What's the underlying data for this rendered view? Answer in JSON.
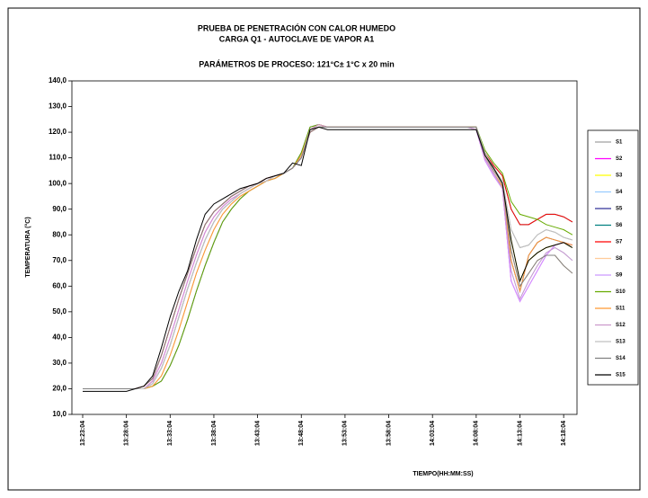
{
  "chart_data": {
    "type": "line",
    "title": "PRUEBA DE  PENETRACIÓN CON  CALOR HUMEDO",
    "subtitle": "CARGA Q1 - AUTOCLAVE DE VAPOR A1",
    "annotation": "PARÁMETROS DE PROCESO: 121°C± 1°C x 20 min",
    "ylabel": "TEMPERATURA (°C)",
    "xlabel": "TIEMPO(HH:MM:SS)",
    "ylim": [
      10,
      140
    ],
    "yticks": [
      {
        "value": 10,
        "label": "10,0"
      },
      {
        "value": 20,
        "label": "20,0"
      },
      {
        "value": 30,
        "label": "30,0"
      },
      {
        "value": 40,
        "label": "40,0"
      },
      {
        "value": 50,
        "label": "50,0"
      },
      {
        "value": 60,
        "label": "60,0"
      },
      {
        "value": 70,
        "label": "70,0"
      },
      {
        "value": 80,
        "label": "80,0"
      },
      {
        "value": 90,
        "label": "90,0"
      },
      {
        "value": 100,
        "label": "100,0"
      },
      {
        "value": 110,
        "label": "110,0"
      },
      {
        "value": 120,
        "label": "120,0"
      },
      {
        "value": 130,
        "label": "130,0"
      },
      {
        "value": 140,
        "label": "140,0"
      }
    ],
    "grid": false,
    "legend": "right",
    "categories": [
      "13:23:04",
      null,
      null,
      null,
      null,
      "13:28:04",
      null,
      null,
      null,
      null,
      "13:33:04",
      null,
      null,
      null,
      null,
      "13:38:04",
      null,
      null,
      null,
      null,
      "13:43:04",
      null,
      null,
      null,
      null,
      "13:48:04",
      null,
      null,
      null,
      null,
      "13:53:04",
      null,
      null,
      null,
      null,
      "13:58:04",
      null,
      null,
      null,
      null,
      "14:03:04",
      null,
      null,
      null,
      null,
      "14:08:04",
      null,
      null,
      null,
      null,
      "14:13:04",
      null,
      null,
      null,
      null,
      "14:18:04",
      null
    ],
    "series": [
      {
        "name": "S1",
        "color": "#a0a0a0",
        "values": [
          20,
          20,
          20,
          20,
          20,
          20,
          20,
          21,
          24,
          33,
          44,
          55,
          65,
          75,
          84,
          89,
          92,
          95,
          97,
          99,
          100,
          102,
          103,
          104,
          106,
          110,
          120,
          122,
          122,
          122,
          122,
          122,
          122,
          122,
          122,
          122,
          122,
          122,
          122,
          122,
          122,
          122,
          122,
          122,
          122,
          122,
          112,
          106,
          101,
          82,
          75,
          76,
          80,
          82,
          81,
          79,
          78
        ]
      },
      {
        "name": "S2",
        "color": "#ff00ff",
        "values": [
          20,
          20,
          20,
          20,
          20,
          20,
          20,
          20,
          23,
          30,
          40,
          51,
          62,
          72,
          81,
          87,
          91,
          94,
          96,
          98,
          100,
          101,
          103,
          104,
          106,
          110,
          121,
          123,
          122,
          122,
          122,
          122,
          122,
          122,
          122,
          122,
          122,
          122,
          122,
          122,
          122,
          122,
          122,
          122,
          122,
          121,
          109,
          103,
          98,
          62,
          54,
          60,
          66,
          72,
          76,
          77,
          76
        ]
      },
      {
        "name": "S3",
        "color": "#ffff00",
        "values": [
          20,
          20,
          20,
          20,
          20,
          20,
          20,
          20,
          22,
          28,
          37,
          48,
          59,
          69,
          78,
          85,
          90,
          93,
          96,
          98,
          100,
          101,
          103,
          104,
          106,
          110,
          121,
          122,
          122,
          122,
          122,
          122,
          122,
          122,
          122,
          122,
          122,
          122,
          122,
          122,
          122,
          122,
          122,
          122,
          122,
          121,
          111,
          106,
          100,
          78,
          62,
          70,
          73,
          75,
          76,
          77,
          75
        ]
      },
      {
        "name": "S4",
        "color": "#99ccff",
        "values": [
          20,
          20,
          20,
          20,
          20,
          20,
          20,
          20,
          21,
          25,
          33,
          43,
          54,
          65,
          74,
          82,
          88,
          92,
          95,
          97,
          99,
          101,
          102,
          104,
          106,
          111,
          121,
          123,
          122,
          122,
          122,
          122,
          122,
          122,
          122,
          122,
          122,
          122,
          122,
          122,
          122,
          122,
          122,
          122,
          122,
          121,
          110,
          104,
          98,
          66,
          55,
          62,
          68,
          73,
          75,
          73,
          70
        ]
      },
      {
        "name": "S5",
        "color": "#333399",
        "values": [
          20,
          20,
          20,
          20,
          20,
          20,
          20,
          20,
          21,
          23,
          29,
          37,
          47,
          58,
          68,
          77,
          85,
          90,
          94,
          97,
          99,
          101,
          102,
          104,
          106,
          112,
          122,
          123,
          122,
          122,
          122,
          122,
          122,
          122,
          122,
          122,
          122,
          122,
          122,
          122,
          122,
          122,
          122,
          122,
          122,
          122,
          110,
          104,
          99,
          70,
          58,
          72,
          77,
          79,
          78,
          77,
          76
        ]
      },
      {
        "name": "S6",
        "color": "#008080",
        "values": [
          20,
          20,
          20,
          20,
          20,
          20,
          20,
          20,
          22,
          28,
          37,
          48,
          59,
          69,
          78,
          85,
          90,
          93,
          96,
          98,
          100,
          101,
          103,
          104,
          106,
          110,
          121,
          122,
          122,
          122,
          122,
          122,
          122,
          122,
          122,
          122,
          122,
          122,
          122,
          122,
          122,
          122,
          122,
          122,
          122,
          122,
          112,
          107,
          103,
          90,
          84,
          84,
          86,
          88,
          88,
          87,
          85
        ]
      },
      {
        "name": "S7",
        "color": "#ff0000",
        "values": [
          20,
          20,
          20,
          20,
          20,
          20,
          20,
          21,
          24,
          33,
          44,
          55,
          65,
          75,
          84,
          89,
          92,
          95,
          97,
          99,
          100,
          102,
          103,
          104,
          106,
          110,
          120,
          122,
          122,
          122,
          122,
          122,
          122,
          122,
          122,
          122,
          122,
          122,
          122,
          122,
          122,
          122,
          122,
          122,
          122,
          122,
          112,
          107,
          103,
          90,
          84,
          84,
          86,
          88,
          88,
          87,
          85
        ]
      },
      {
        "name": "S8",
        "color": "#ffcc99",
        "values": [
          20,
          20,
          20,
          20,
          20,
          20,
          20,
          20,
          21,
          25,
          33,
          43,
          54,
          65,
          74,
          82,
          88,
          92,
          95,
          97,
          99,
          101,
          102,
          104,
          106,
          111,
          121,
          123,
          122,
          122,
          122,
          122,
          122,
          122,
          122,
          122,
          122,
          122,
          122,
          122,
          122,
          122,
          122,
          122,
          122,
          122,
          111,
          105,
          100,
          74,
          60,
          65,
          70,
          72,
          72,
          68,
          65
        ]
      },
      {
        "name": "S9",
        "color": "#cc99ff",
        "values": [
          20,
          20,
          20,
          20,
          20,
          20,
          20,
          20,
          22,
          28,
          37,
          48,
          59,
          69,
          78,
          85,
          90,
          93,
          96,
          98,
          100,
          101,
          103,
          104,
          106,
          110,
          121,
          122,
          122,
          122,
          122,
          122,
          122,
          122,
          122,
          122,
          122,
          122,
          122,
          122,
          122,
          122,
          122,
          122,
          122,
          121,
          109,
          103,
          98,
          62,
          54,
          60,
          66,
          72,
          76,
          77,
          76
        ]
      },
      {
        "name": "S10",
        "color": "#66aa00",
        "values": [
          20,
          20,
          20,
          20,
          20,
          20,
          20,
          20,
          21,
          23,
          29,
          37,
          47,
          58,
          68,
          77,
          85,
          90,
          94,
          97,
          99,
          101,
          102,
          104,
          106,
          112,
          122,
          123,
          122,
          122,
          122,
          122,
          122,
          122,
          122,
          122,
          122,
          122,
          122,
          122,
          122,
          122,
          122,
          122,
          122,
          122,
          113,
          108,
          104,
          93,
          88,
          87,
          86,
          84,
          83,
          82,
          80
        ]
      },
      {
        "name": "S11",
        "color": "#ff9933",
        "values": [
          20,
          20,
          20,
          20,
          20,
          20,
          20,
          20,
          21,
          25,
          33,
          43,
          54,
          65,
          74,
          82,
          88,
          92,
          95,
          97,
          99,
          101,
          102,
          104,
          106,
          111,
          121,
          123,
          122,
          122,
          122,
          122,
          122,
          122,
          122,
          122,
          122,
          122,
          122,
          122,
          122,
          122,
          122,
          122,
          122,
          122,
          110,
          104,
          99,
          70,
          58,
          72,
          77,
          79,
          78,
          77,
          76
        ]
      },
      {
        "name": "S12",
        "color": "#cc99cc",
        "values": [
          20,
          20,
          20,
          20,
          20,
          20,
          20,
          20,
          23,
          30,
          40,
          51,
          62,
          72,
          81,
          87,
          91,
          94,
          96,
          98,
          100,
          101,
          103,
          104,
          106,
          110,
          121,
          123,
          122,
          122,
          122,
          122,
          122,
          122,
          122,
          122,
          122,
          122,
          122,
          122,
          122,
          122,
          122,
          122,
          122,
          121,
          110,
          104,
          98,
          66,
          55,
          62,
          68,
          73,
          75,
          73,
          70
        ]
      },
      {
        "name": "S13",
        "color": "#c0c0c0",
        "values": [
          20,
          20,
          20,
          20,
          20,
          20,
          20,
          20,
          22,
          28,
          37,
          48,
          59,
          69,
          78,
          85,
          90,
          93,
          96,
          98,
          100,
          101,
          103,
          104,
          106,
          110,
          121,
          122,
          122,
          122,
          122,
          122,
          122,
          122,
          122,
          122,
          122,
          122,
          122,
          122,
          122,
          122,
          122,
          122,
          122,
          122,
          112,
          106,
          101,
          82,
          75,
          76,
          80,
          82,
          81,
          79,
          78
        ]
      },
      {
        "name": "S14",
        "color": "#808080",
        "values": [
          20,
          20,
          20,
          20,
          20,
          20,
          20,
          21,
          24,
          33,
          44,
          55,
          65,
          75,
          84,
          89,
          92,
          95,
          97,
          99,
          100,
          102,
          103,
          104,
          106,
          110,
          120,
          122,
          122,
          122,
          122,
          122,
          122,
          122,
          122,
          122,
          122,
          122,
          122,
          122,
          122,
          122,
          122,
          122,
          122,
          122,
          111,
          105,
          100,
          74,
          60,
          65,
          70,
          72,
          72,
          68,
          65
        ]
      },
      {
        "name": "S15",
        "color": "#000000",
        "values": [
          19,
          19,
          19,
          19,
          19,
          19,
          20,
          21,
          25,
          36,
          48,
          58,
          66,
          78,
          88,
          92,
          94,
          96,
          98,
          99,
          100,
          102,
          103,
          104,
          108,
          107,
          121,
          122,
          121,
          121,
          121,
          121,
          121,
          121,
          121,
          121,
          121,
          121,
          121,
          121,
          121,
          121,
          121,
          121,
          121,
          121,
          111,
          106,
          100,
          78,
          62,
          70,
          73,
          75,
          76,
          77,
          75
        ]
      }
    ]
  }
}
